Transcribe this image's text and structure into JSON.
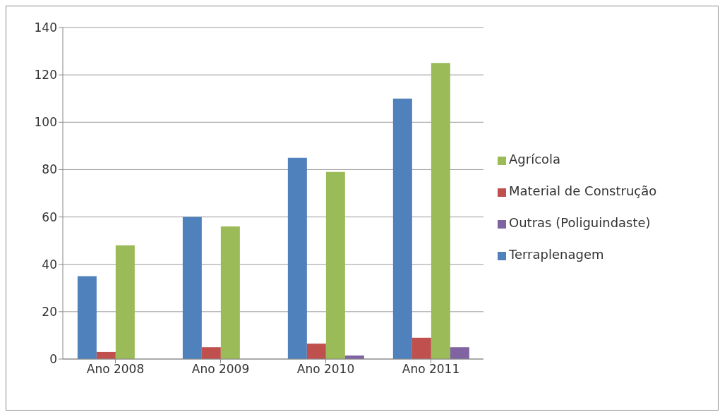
{
  "chart_data": {
    "type": "bar",
    "categories": [
      "Ano 2008",
      "Ano 2009",
      "Ano 2010",
      "Ano 2011"
    ],
    "series": [
      {
        "name": "Terraplenagem",
        "color": "#4f81bd",
        "values": [
          35,
          60,
          85,
          110
        ]
      },
      {
        "name": "Material de Construção",
        "color": "#c0504d",
        "values": [
          3,
          5,
          6.5,
          9
        ]
      },
      {
        "name": "Agrícola",
        "color": "#9bbb59",
        "values": [
          48,
          56,
          79,
          125
        ]
      },
      {
        "name": "Outras (Poliguindaste)",
        "color": "#8064a2",
        "values": [
          0,
          0,
          1.5,
          5
        ]
      }
    ],
    "ylim": [
      0,
      140
    ],
    "yticks": [
      0,
      20,
      40,
      60,
      80,
      100,
      120,
      140
    ],
    "grid": "y",
    "legend": "right"
  }
}
